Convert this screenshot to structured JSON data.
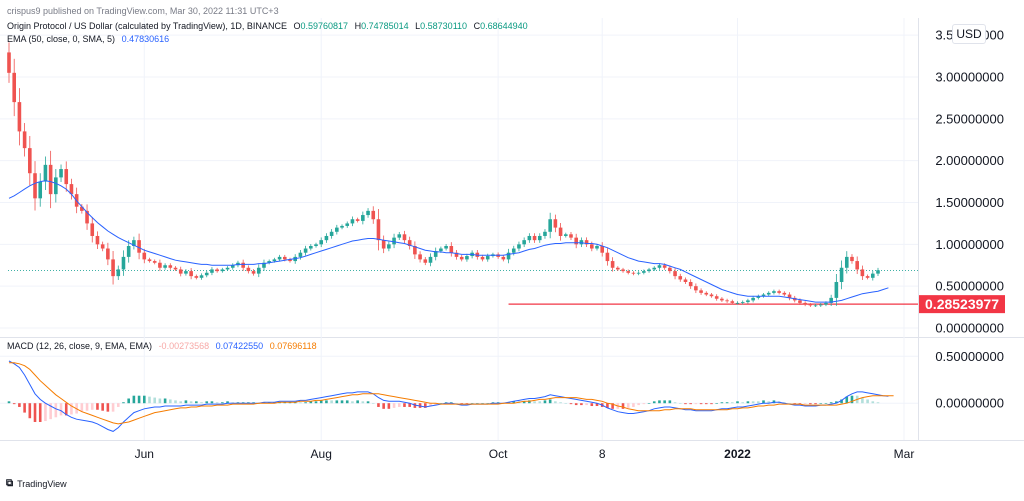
{
  "watermark": "crispus9 published on TradingView.com, Mar 30, 2022 11:31 UTC+3",
  "legend": {
    "symbol": "Origin Protocol / US Dollar (calculated by TradingView), 1D, BINANCE",
    "o_label": "O",
    "o": "0.59760817",
    "h_label": "H",
    "h": "0.74785014",
    "l_label": "L",
    "l": "0.58730110",
    "c_label": "C",
    "c": "0.68644940",
    "ema_label": "EMA (50, close, 0, SMA, 5)",
    "ema_value": "0.47830616",
    "macd_label": "MACD (12, 26, close, 9, EMA, EMA)",
    "macd_hist": "-0.00273568",
    "macd_line": "0.07422550",
    "macd_signal": "0.07696118"
  },
  "currency_button": "USD",
  "branding": "TradingView",
  "colors": {
    "up": "#26a69a",
    "down": "#ef5350",
    "ema": "#2962ff",
    "macd": "#2962ff",
    "signal": "#f57c00",
    "support": "#f23645",
    "last": "#26a69a"
  },
  "chart_data": [
    {
      "type": "candlestick",
      "title": "Origin Protocol / US Dollar",
      "price_axis_ticks": [
        "3.50000000",
        "3.00000000",
        "2.50000000",
        "2.00000000",
        "1.50000000",
        "1.00000000",
        "0.50000000",
        "0.00000000"
      ],
      "price_axis_values": [
        3.5,
        3.0,
        2.5,
        2.0,
        1.5,
        1.0,
        0.5,
        0.0
      ],
      "ylim": [
        0,
        3.55
      ],
      "time_axis_labels": [
        "Jun",
        "Aug",
        "Oct",
        "8",
        "2022",
        "Mar"
      ],
      "time_axis_index": [
        26,
        60,
        94,
        114,
        140,
        172
      ],
      "support_level": 0.28523977,
      "support_label": "0.28523977",
      "support_start_index": 96,
      "last_close": 0.6864494,
      "close": [
        3.05,
        2.7,
        2.35,
        2.15,
        1.85,
        1.55,
        1.75,
        1.95,
        1.6,
        1.8,
        1.9,
        1.72,
        1.6,
        1.45,
        1.4,
        1.25,
        1.1,
        1.0,
        0.95,
        0.82,
        0.62,
        0.7,
        0.85,
        0.98,
        1.05,
        0.9,
        0.82,
        0.8,
        0.78,
        0.72,
        0.75,
        0.72,
        0.7,
        0.65,
        0.68,
        0.62,
        0.6,
        0.63,
        0.66,
        0.7,
        0.68,
        0.7,
        0.72,
        0.75,
        0.78,
        0.72,
        0.68,
        0.65,
        0.72,
        0.78,
        0.8,
        0.82,
        0.85,
        0.82,
        0.8,
        0.85,
        0.9,
        0.95,
        0.98,
        1.0,
        1.05,
        1.1,
        1.15,
        1.2,
        1.22,
        1.25,
        1.3,
        1.28,
        1.35,
        1.4,
        1.3,
        1.05,
        0.95,
        1.0,
        1.08,
        1.12,
        1.05,
        0.98,
        0.88,
        0.82,
        0.78,
        0.85,
        0.92,
        0.95,
        0.98,
        0.9,
        0.85,
        0.82,
        0.86,
        0.9,
        0.85,
        0.82,
        0.86,
        0.88,
        0.85,
        0.82,
        0.9,
        0.95,
        1.0,
        1.05,
        1.1,
        1.05,
        1.1,
        1.15,
        1.3,
        1.2,
        1.1,
        1.12,
        1.08,
        1.0,
        1.05,
        1.0,
        0.95,
        0.98,
        0.9,
        0.8,
        0.72,
        0.7,
        0.68,
        0.66,
        0.65,
        0.66,
        0.68,
        0.7,
        0.72,
        0.75,
        0.72,
        0.68,
        0.62,
        0.58,
        0.55,
        0.5,
        0.45,
        0.42,
        0.4,
        0.38,
        0.35,
        0.33,
        0.32,
        0.3,
        0.3,
        0.31,
        0.33,
        0.36,
        0.38,
        0.4,
        0.42,
        0.44,
        0.42,
        0.4,
        0.36,
        0.33,
        0.3,
        0.28,
        0.27,
        0.27,
        0.28,
        0.3,
        0.36,
        0.55,
        0.72,
        0.85,
        0.8,
        0.7,
        0.62,
        0.6,
        0.65,
        0.69
      ],
      "ema50": [
        1.55,
        1.58,
        1.62,
        1.66,
        1.7,
        1.73,
        1.75,
        1.76,
        1.75,
        1.73,
        1.7,
        1.66,
        1.6,
        1.52,
        1.45,
        1.38,
        1.32,
        1.26,
        1.21,
        1.16,
        1.12,
        1.08,
        1.05,
        1.02,
        0.99,
        0.96,
        0.93,
        0.91,
        0.89,
        0.87,
        0.85,
        0.83,
        0.81,
        0.8,
        0.79,
        0.78,
        0.77,
        0.76,
        0.76,
        0.75,
        0.75,
        0.75,
        0.75,
        0.75,
        0.76,
        0.76,
        0.76,
        0.76,
        0.77,
        0.77,
        0.78,
        0.79,
        0.8,
        0.81,
        0.82,
        0.83,
        0.84,
        0.86,
        0.88,
        0.9,
        0.92,
        0.94,
        0.96,
        0.98,
        1.0,
        1.02,
        1.04,
        1.05,
        1.06,
        1.07,
        1.07,
        1.06,
        1.05,
        1.04,
        1.03,
        1.02,
        1.01,
        0.99,
        0.97,
        0.95,
        0.93,
        0.92,
        0.91,
        0.91,
        0.9,
        0.9,
        0.89,
        0.88,
        0.88,
        0.88,
        0.87,
        0.87,
        0.87,
        0.87,
        0.87,
        0.87,
        0.88,
        0.89,
        0.9,
        0.92,
        0.94,
        0.95,
        0.97,
        0.99,
        1.0,
        1.01,
        1.01,
        1.02,
        1.02,
        1.02,
        1.02,
        1.01,
        1.01,
        1.0,
        0.98,
        0.96,
        0.93,
        0.9,
        0.87,
        0.84,
        0.82,
        0.8,
        0.79,
        0.78,
        0.77,
        0.77,
        0.76,
        0.74,
        0.72,
        0.7,
        0.67,
        0.64,
        0.61,
        0.58,
        0.55,
        0.52,
        0.49,
        0.46,
        0.44,
        0.42,
        0.4,
        0.39,
        0.38,
        0.38,
        0.38,
        0.38,
        0.38,
        0.38,
        0.38,
        0.37,
        0.36,
        0.35,
        0.34,
        0.33,
        0.32,
        0.31,
        0.31,
        0.31,
        0.31,
        0.32,
        0.33,
        0.35,
        0.37,
        0.39,
        0.41,
        0.42,
        0.43,
        0.44,
        0.46,
        0.48
      ]
    },
    {
      "type": "macd",
      "title": "MACD (12, 26, close, 9, EMA, EMA)",
      "axis_ticks": [
        "0.50000000",
        "0.00000000"
      ],
      "axis_values": [
        0.5,
        0.0
      ],
      "ylim": [
        -0.36,
        0.62
      ],
      "macd": [
        0.45,
        0.42,
        0.38,
        0.3,
        0.2,
        0.1,
        0.04,
        0.0,
        -0.03,
        -0.06,
        -0.08,
        -0.12,
        -0.15,
        -0.17,
        -0.18,
        -0.19,
        -0.2,
        -0.22,
        -0.25,
        -0.28,
        -0.3,
        -0.26,
        -0.2,
        -0.15,
        -0.1,
        -0.08,
        -0.06,
        -0.05,
        -0.04,
        -0.04,
        -0.03,
        -0.03,
        -0.03,
        -0.03,
        -0.02,
        -0.02,
        -0.02,
        -0.02,
        -0.01,
        -0.01,
        -0.01,
        -0.01,
        0.0,
        0.0,
        0.0,
        0.0,
        0.0,
        0.0,
        0.0,
        0.01,
        0.01,
        0.01,
        0.02,
        0.02,
        0.02,
        0.02,
        0.03,
        0.03,
        0.04,
        0.05,
        0.06,
        0.07,
        0.08,
        0.09,
        0.1,
        0.11,
        0.11,
        0.12,
        0.12,
        0.12,
        0.1,
        0.06,
        0.03,
        0.02,
        0.02,
        0.02,
        0.01,
        0.0,
        -0.02,
        -0.03,
        -0.04,
        -0.03,
        -0.02,
        -0.01,
        0.0,
        0.0,
        -0.01,
        -0.02,
        -0.02,
        -0.01,
        -0.01,
        -0.01,
        -0.01,
        0.0,
        0.0,
        0.0,
        0.01,
        0.02,
        0.03,
        0.04,
        0.05,
        0.05,
        0.06,
        0.07,
        0.09,
        0.08,
        0.07,
        0.06,
        0.05,
        0.04,
        0.03,
        0.02,
        0.01,
        0.0,
        -0.02,
        -0.05,
        -0.07,
        -0.09,
        -0.1,
        -0.11,
        -0.11,
        -0.1,
        -0.09,
        -0.08,
        -0.06,
        -0.05,
        -0.04,
        -0.04,
        -0.05,
        -0.06,
        -0.07,
        -0.07,
        -0.08,
        -0.08,
        -0.08,
        -0.08,
        -0.07,
        -0.06,
        -0.06,
        -0.05,
        -0.04,
        -0.04,
        -0.03,
        -0.02,
        -0.01,
        0.0,
        0.0,
        0.01,
        0.01,
        0.0,
        -0.01,
        -0.02,
        -0.02,
        -0.03,
        -0.03,
        -0.03,
        -0.02,
        -0.02,
        -0.01,
        0.0,
        0.03,
        0.07,
        0.1,
        0.12,
        0.12,
        0.11,
        0.1,
        0.09,
        0.08,
        0.075
      ],
      "signal": [
        0.43,
        0.43,
        0.42,
        0.4,
        0.36,
        0.3,
        0.24,
        0.19,
        0.14,
        0.09,
        0.05,
        0.01,
        -0.03,
        -0.06,
        -0.09,
        -0.11,
        -0.13,
        -0.15,
        -0.17,
        -0.19,
        -0.21,
        -0.22,
        -0.21,
        -0.2,
        -0.18,
        -0.16,
        -0.14,
        -0.12,
        -0.1,
        -0.09,
        -0.08,
        -0.07,
        -0.06,
        -0.05,
        -0.05,
        -0.04,
        -0.04,
        -0.03,
        -0.03,
        -0.03,
        -0.02,
        -0.02,
        -0.02,
        -0.01,
        -0.01,
        -0.01,
        -0.01,
        -0.01,
        0.0,
        0.0,
        0.0,
        0.0,
        0.01,
        0.01,
        0.01,
        0.01,
        0.02,
        0.02,
        0.02,
        0.03,
        0.03,
        0.04,
        0.05,
        0.06,
        0.07,
        0.08,
        0.09,
        0.09,
        0.1,
        0.1,
        0.1,
        0.1,
        0.09,
        0.08,
        0.07,
        0.06,
        0.05,
        0.04,
        0.03,
        0.02,
        0.01,
        0.0,
        0.0,
        -0.01,
        -0.01,
        -0.01,
        -0.01,
        -0.01,
        -0.01,
        -0.01,
        -0.01,
        -0.01,
        -0.01,
        -0.01,
        -0.01,
        0.0,
        0.0,
        0.0,
        0.01,
        0.02,
        0.02,
        0.03,
        0.04,
        0.04,
        0.05,
        0.06,
        0.06,
        0.06,
        0.06,
        0.06,
        0.05,
        0.04,
        0.04,
        0.03,
        0.02,
        0.0,
        -0.01,
        -0.03,
        -0.04,
        -0.06,
        -0.07,
        -0.08,
        -0.08,
        -0.08,
        -0.08,
        -0.08,
        -0.07,
        -0.07,
        -0.06,
        -0.06,
        -0.06,
        -0.06,
        -0.07,
        -0.07,
        -0.07,
        -0.07,
        -0.07,
        -0.07,
        -0.07,
        -0.06,
        -0.06,
        -0.05,
        -0.05,
        -0.04,
        -0.03,
        -0.03,
        -0.02,
        -0.02,
        -0.01,
        -0.01,
        -0.01,
        -0.01,
        -0.01,
        -0.02,
        -0.02,
        -0.02,
        -0.02,
        -0.02,
        -0.02,
        -0.02,
        -0.01,
        0.0,
        0.02,
        0.04,
        0.06,
        0.07,
        0.08,
        0.08,
        0.08,
        0.08,
        0.08
      ]
    }
  ]
}
